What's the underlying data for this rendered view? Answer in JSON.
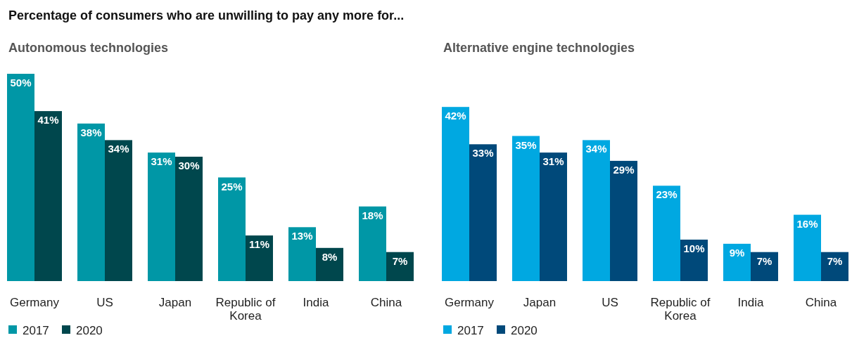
{
  "chart_data": [
    {
      "type": "bar",
      "title": "Percentage of consumers who are unwilling to pay any more for...",
      "subtitle": "Autonomous technologies",
      "categories": [
        "Germany",
        "US",
        "Japan",
        "Republic of Korea",
        "India",
        "China"
      ],
      "legend": "bottom left",
      "series": [
        {
          "name": "2017",
          "color": "#0097a6",
          "values": [
            50,
            38,
            31,
            25,
            13,
            18
          ],
          "value_labels": [
            "50%",
            "38%",
            "31%",
            "25%",
            "13%",
            "18%"
          ]
        },
        {
          "name": "2020",
          "color": "#00474d",
          "values": [
            41,
            34,
            30,
            11,
            8,
            7
          ],
          "value_labels": [
            "41%",
            "34%",
            "30%",
            "11%",
            "8%",
            "7%"
          ]
        }
      ]
    },
    {
      "type": "bar",
      "subtitle": "Alternative engine technologies",
      "categories": [
        "Germany",
        "Japan",
        "US",
        "Republic of Korea",
        "India",
        "China"
      ],
      "legend": "bottom left",
      "series": [
        {
          "name": "2017",
          "color": "#00a8e1",
          "values": [
            42,
            35,
            34,
            23,
            9,
            16
          ],
          "value_labels": [
            "42%",
            "35%",
            "34%",
            "23%",
            "9%",
            "16%"
          ]
        },
        {
          "name": "2020",
          "color": "#00497a",
          "values": [
            33,
            31,
            29,
            10,
            7,
            7
          ],
          "value_labels": [
            "33%",
            "31%",
            "29%",
            "10%",
            "7%",
            "7%"
          ]
        }
      ]
    }
  ]
}
